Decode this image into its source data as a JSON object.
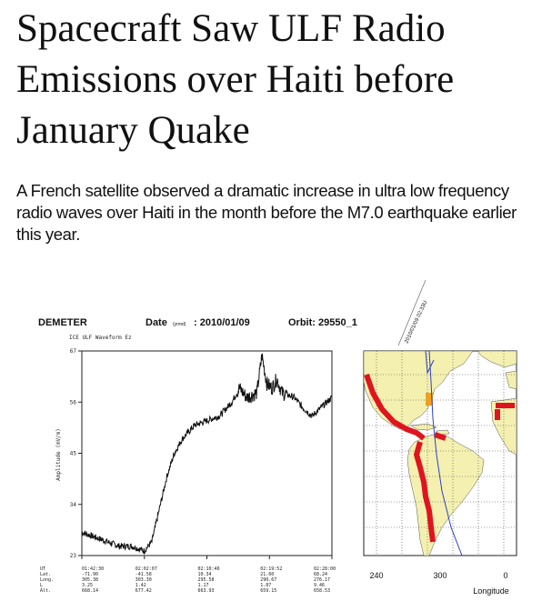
{
  "article": {
    "title": "Spacecraft Saw ULF Radio Emissions over Haiti before January Quake",
    "subtitle": "A French satellite observed a dramatic increase in ultra low frequency radio waves over Haiti in the month before the M7.0 earthquake earlier this year."
  },
  "figure": {
    "satellite": "DEMETER",
    "date_label": "Date",
    "date_sub": "(yrmd)",
    "date_value": ": 2010/01/09",
    "orbit_label": "Orbit: 29550_1",
    "waveform_label": "ICE ULF Waveform Ez",
    "y_axis_label": "Amplitude (mV/m)",
    "orbit_track_label": "2010/01/09 02:33U",
    "time_rows": [
      "UT",
      "Lat.",
      "Long.",
      "L",
      "Alt."
    ],
    "time_columns": [
      [
        "01:42:30",
        "-71.90",
        "305.38",
        "3.25",
        "668.14"
      ],
      [
        "02:02:07",
        "-41.58",
        "303.30",
        "1.42",
        "677.42"
      ],
      [
        "02:10:46",
        "10.34",
        "295.58",
        "1.17",
        "663.93"
      ],
      [
        "02:19:52",
        "21.60",
        "290.67",
        "1.87",
        "659.15"
      ],
      [
        "02:28:00",
        "68.24",
        "276.17",
        "9.46",
        "658.53"
      ]
    ],
    "map": {
      "colors": {
        "land": "#f4f0b0",
        "ocean": "#ffffff",
        "highlight": "#e0141e",
        "marker": "#f0a020",
        "track": "#3040c0"
      },
      "x_label": "Longitude"
    }
  },
  "chart_data": {
    "type": "line",
    "title": "ICE ULF Waveform Ez",
    "xlabel": "",
    "ylabel": "Amplitude (mV/m)",
    "ylim": [
      23,
      67
    ],
    "yticks": [
      "67",
      "56",
      "45",
      "34",
      "23"
    ],
    "x": [
      0,
      0.05,
      0.1,
      0.15,
      0.2,
      0.25,
      0.28,
      0.31,
      0.34,
      0.37,
      0.4,
      0.45,
      0.5,
      0.55,
      0.6,
      0.63,
      0.66,
      0.7,
      0.72,
      0.74,
      0.76,
      0.78,
      0.8,
      0.85,
      0.88,
      0.92,
      0.96,
      1.0
    ],
    "values": [
      28,
      27,
      26,
      25,
      25,
      24,
      26,
      33,
      40,
      45,
      48,
      51,
      52,
      53,
      56,
      59,
      57,
      58,
      66,
      60,
      59,
      61,
      58,
      57,
      55,
      53,
      55,
      57
    ],
    "series": [
      {
        "values": [
          28,
          27,
          26,
          25,
          25,
          24,
          26,
          33,
          40,
          45,
          48,
          51,
          52,
          53,
          56,
          59,
          57,
          58,
          66,
          60,
          59,
          61,
          58,
          57,
          55,
          53,
          55,
          57
        ]
      }
    ],
    "map_xticks": [
      "240",
      "300",
      "0"
    ],
    "map_xlabel": "Longitude"
  }
}
